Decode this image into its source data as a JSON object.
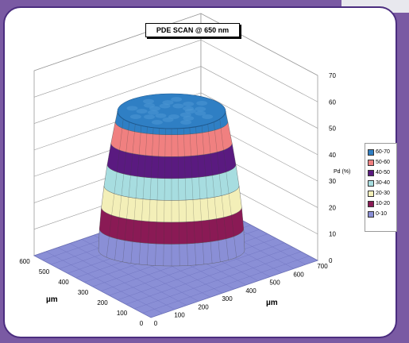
{
  "chart_data": {
    "type": "surface",
    "title": "PDE SCAN @ 650 nm",
    "xlabel": "µm",
    "ylabel": "µm",
    "zlabel": "Pd (%)",
    "x_ticks": [
      "0",
      "100",
      "200",
      "300",
      "400",
      "500",
      "600",
      "700"
    ],
    "y_ticks": [
      "0",
      "100",
      "200",
      "300",
      "400",
      "500",
      "600"
    ],
    "z_ticks": [
      "0",
      "10",
      "20",
      "30",
      "40",
      "50",
      "60",
      "70"
    ],
    "zlim": [
      0,
      70
    ],
    "plateau_level": 65,
    "bands": [
      {
        "name": "0-10",
        "range": [
          0,
          10
        ],
        "color": "#8a8fd6"
      },
      {
        "name": "10-20",
        "range": [
          10,
          20
        ],
        "color": "#8a1a55"
      },
      {
        "name": "20-30",
        "range": [
          20,
          30
        ],
        "color": "#f3efb8"
      },
      {
        "name": "30-40",
        "range": [
          30,
          40
        ],
        "color": "#a7dde0"
      },
      {
        "name": "40-50",
        "range": [
          40,
          50
        ],
        "color": "#5a1a80"
      },
      {
        "name": "50-60",
        "range": [
          50,
          60
        ],
        "color": "#f08080"
      },
      {
        "name": "60-70",
        "range": [
          60,
          70
        ],
        "color": "#2f7fc4"
      }
    ],
    "legend_position": "right"
  },
  "colors": {
    "background": "#7a5aa3",
    "panel_border": "#4b2d7f",
    "grid": "#9a9a9a"
  }
}
